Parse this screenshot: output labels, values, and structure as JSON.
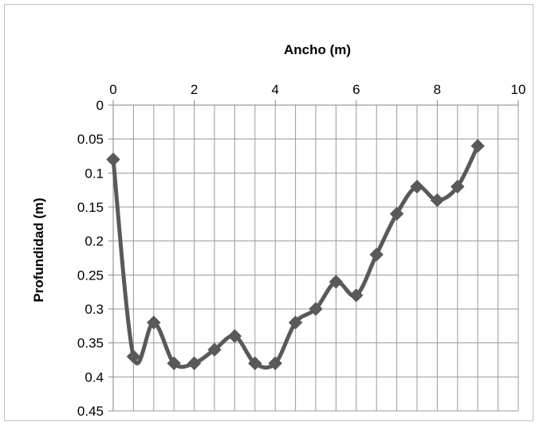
{
  "chart_data": {
    "type": "line",
    "xlabel": "Ancho (m)",
    "ylabel": "Profundidad (m)",
    "xlim": [
      0,
      10
    ],
    "ylim": [
      0,
      0.45
    ],
    "y_inverted": true,
    "x_axis_position": "top",
    "x_ticks": [
      "0",
      "2",
      "4",
      "6",
      "8",
      "10"
    ],
    "x_tick_values": [
      0,
      2,
      4,
      6,
      8,
      10
    ],
    "y_ticks": [
      "0",
      "0.05",
      "0.1",
      "0.15",
      "0.2",
      "0.25",
      "0.3",
      "0.35",
      "0.4",
      "0.45"
    ],
    "y_tick_values": [
      0,
      0.05,
      0.1,
      0.15,
      0.2,
      0.25,
      0.3,
      0.35,
      0.4,
      0.45
    ],
    "x_minor_gridline_step": 0.5,
    "grid": true,
    "legend": "none",
    "series": [
      {
        "marker": "diamond",
        "smoothed": true,
        "color": "#595959",
        "x": [
          0,
          0.5,
          1,
          1.5,
          2,
          2.5,
          3,
          3.5,
          4,
          4.5,
          5,
          5.5,
          6,
          6.5,
          7,
          7.5,
          8,
          8.5,
          9
        ],
        "y": [
          0.08,
          0.37,
          0.32,
          0.38,
          0.38,
          0.36,
          0.34,
          0.38,
          0.38,
          0.32,
          0.3,
          0.26,
          0.28,
          0.22,
          0.16,
          0.12,
          0.14,
          0.12,
          0.06
        ]
      }
    ]
  }
}
